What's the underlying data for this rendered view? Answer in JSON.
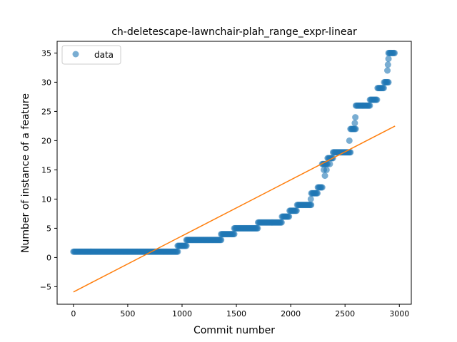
{
  "chart_data": {
    "type": "scatter",
    "title": "ch-deletescape-lawnchair-plah_range_expr-linear",
    "xlabel": "Commit number",
    "ylabel": "Number of instance of a feature",
    "xlim": [
      -150,
      3110
    ],
    "ylim": [
      -8,
      37
    ],
    "xticks": [
      0,
      500,
      1000,
      1500,
      2000,
      2500,
      3000
    ],
    "yticks": [
      -5,
      0,
      5,
      10,
      15,
      20,
      25,
      30,
      35
    ],
    "grid": false,
    "legend": {
      "placement": "top-left",
      "entries": [
        "data"
      ]
    },
    "colors": {
      "data": "#1f77b4",
      "fit": "#ff7f0e"
    },
    "series": [
      {
        "name": "data",
        "kind": "points",
        "segments": [
          {
            "x_start": 0,
            "x_end": 960,
            "y": 1
          },
          {
            "x_start": 960,
            "x_end": 1040,
            "y": 2
          },
          {
            "x_start": 1040,
            "x_end": 1360,
            "y": 3
          },
          {
            "x_start": 1360,
            "x_end": 1480,
            "y": 4
          },
          {
            "x_start": 1480,
            "x_end": 1700,
            "y": 5
          },
          {
            "x_start": 1700,
            "x_end": 1920,
            "y": 6
          },
          {
            "x_start": 1920,
            "x_end": 1990,
            "y": 7
          },
          {
            "x_start": 1990,
            "x_end": 2060,
            "y": 8
          },
          {
            "x_start": 2060,
            "x_end": 2190,
            "y": 9
          },
          {
            "x_start": 2190,
            "x_end": 2250,
            "y": 11
          },
          {
            "x_start": 2250,
            "x_end": 2290,
            "y": 12
          },
          {
            "x_start": 2290,
            "x_end": 2340,
            "y": 16
          },
          {
            "x_start": 2340,
            "x_end": 2390,
            "y": 17
          },
          {
            "x_start": 2390,
            "x_end": 2550,
            "y": 18
          },
          {
            "x_start": 2550,
            "x_end": 2600,
            "y": 22
          },
          {
            "x_start": 2600,
            "x_end": 2730,
            "y": 26
          },
          {
            "x_start": 2730,
            "x_end": 2800,
            "y": 27
          },
          {
            "x_start": 2800,
            "x_end": 2860,
            "y": 29
          },
          {
            "x_start": 2860,
            "x_end": 2900,
            "y": 30
          },
          {
            "x_start": 2900,
            "x_end": 2960,
            "y": 35
          }
        ],
        "extra_points": [
          {
            "x": 2185,
            "y": 10
          },
          {
            "x": 2305,
            "y": 15
          },
          {
            "x": 2315,
            "y": 14
          },
          {
            "x": 2330,
            "y": 15
          },
          {
            "x": 2360,
            "y": 16
          },
          {
            "x": 2540,
            "y": 20
          },
          {
            "x": 2590,
            "y": 23
          },
          {
            "x": 2595,
            "y": 24
          },
          {
            "x": 2890,
            "y": 32
          },
          {
            "x": 2895,
            "y": 33
          },
          {
            "x": 2900,
            "y": 34
          }
        ]
      },
      {
        "name": "linear fit",
        "kind": "line",
        "points": [
          {
            "x": 0,
            "y": -5.9
          },
          {
            "x": 2960,
            "y": 22.5
          }
        ]
      }
    ]
  }
}
